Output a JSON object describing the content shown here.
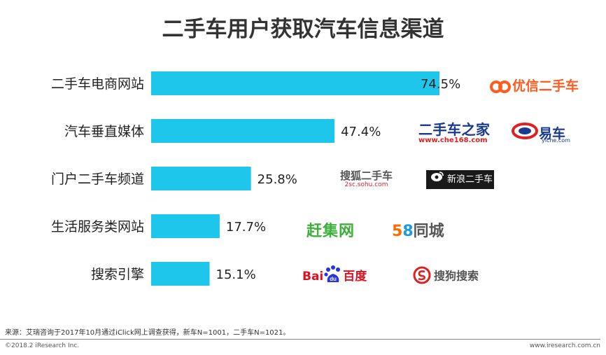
{
  "title": "二手车用户获取汽车信息渠道",
  "chart_data": {
    "type": "bar",
    "orientation": "horizontal",
    "title": "二手车用户获取汽车信息渠道",
    "categories": [
      "二手车电商网站",
      "汽车垂直媒体",
      "门户二手车频道",
      "生活服务类网站",
      "搜索引擎"
    ],
    "values": [
      74.5,
      47.4,
      25.8,
      17.7,
      15.1
    ],
    "value_labels": [
      "74.5%",
      "47.4%",
      "25.8%",
      "17.7%",
      "15.1%"
    ],
    "unit": "%",
    "xlim": [
      0,
      100
    ],
    "grid": false,
    "legend": "none",
    "bar_color": "#1ec6ec"
  },
  "logos": {
    "uxin": {
      "icon": "uxin-logo",
      "text": "优信二手车"
    },
    "che168": {
      "name": "二手车之家",
      "url": "www.che168.com"
    },
    "yiche": {
      "text": "易车",
      "url": "yiche.com"
    },
    "sohu": {
      "name": "搜狐二手车",
      "url": "2sc.sohu.com"
    },
    "sina": {
      "icon": "sina-eye-logo",
      "text": "新浪二手车"
    },
    "ganji": {
      "text": "赶集网"
    },
    "wuba": {
      "num5": "5",
      "num8": "8",
      "text": "同城"
    },
    "baidu": {
      "en": "Bai",
      "paw_text": "du",
      "cn": "百度"
    },
    "sogou": {
      "icon": "sogou-logo",
      "text": "搜狗搜索"
    }
  },
  "footer": {
    "source": "来源：艾瑞咨询于2017年10月通过iClick网上调查获得，新车N=1001，二手车N=1021。",
    "copyright": "©2018.2 iResearch Inc.",
    "website": "www.iresearch.com.cn"
  }
}
